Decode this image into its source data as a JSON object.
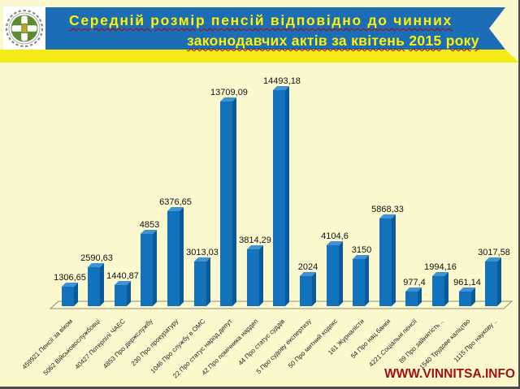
{
  "header": {
    "title_line1": "Середній розмір пенсій відповідно до чинних",
    "title_line2_seg1": "законодавчих актів за квітень",
    "title_line2_year": "2015",
    "title_line2_seg2": "року"
  },
  "watermark": "WWW.VINNITSA.INFO",
  "chart_data": {
    "type": "bar",
    "title": "Середній розмір пенсій відповідно до чинних законодавчих актів за квітень 2015 року",
    "categories": [
      "459921 Пенсії за віком",
      "5062 Військовослужбовці",
      "40427 Потерпілі ЧАЕС",
      "4853 Про держслужбу",
      "230 Про прокуратуру",
      "1046 Про службу в ОМС",
      "22 Про статус народ.депут",
      "42 Про помічника нардеп",
      "44 Про статус суддів",
      "5 Про судову експертизу",
      "50 Про митний кодекс",
      "161 Журналісти",
      "54 Про нац.банки",
      "4221 Соціальні пенсії",
      "89 Про зайнятість ..",
      "1540 Трудове каліцтво",
      "1115 Про наукову .."
    ],
    "values": [
      1306.65,
      2590.63,
      1440.87,
      4853,
      6376.65,
      3013.03,
      13709.09,
      3814.29,
      14493.18,
      2024,
      4104.6,
      3150,
      5868.33,
      977.4,
      1994.16,
      961.14,
      3017.58
    ],
    "value_labels": [
      "1306,65",
      "2590,63",
      "1440,87",
      "4853",
      "6376,65",
      "3013,03",
      "13709,09",
      "3814,29",
      "14493,18",
      "2024",
      "4104,6",
      "3150",
      "5868,33",
      "977,4",
      "1994,16",
      "961,14",
      "3017,58"
    ],
    "xlabel": "",
    "ylabel": "",
    "ylim": [
      0,
      15000
    ],
    "grid": false,
    "legend": false,
    "bar_color": "#1272BC"
  },
  "colors": {
    "page_bg": "#FBF8CE",
    "banner_blue": "#1B6DB5",
    "stripe_yellow": "#F4EB16",
    "title_yellow": "#FFF100",
    "bar_front": "#1272BC",
    "bar_top": "#3E93D0",
    "bar_side": "#0A5A9A",
    "watermark_red": "#A01010",
    "logo_green": "#5D8A33",
    "logo_gold": "#C9A227"
  }
}
